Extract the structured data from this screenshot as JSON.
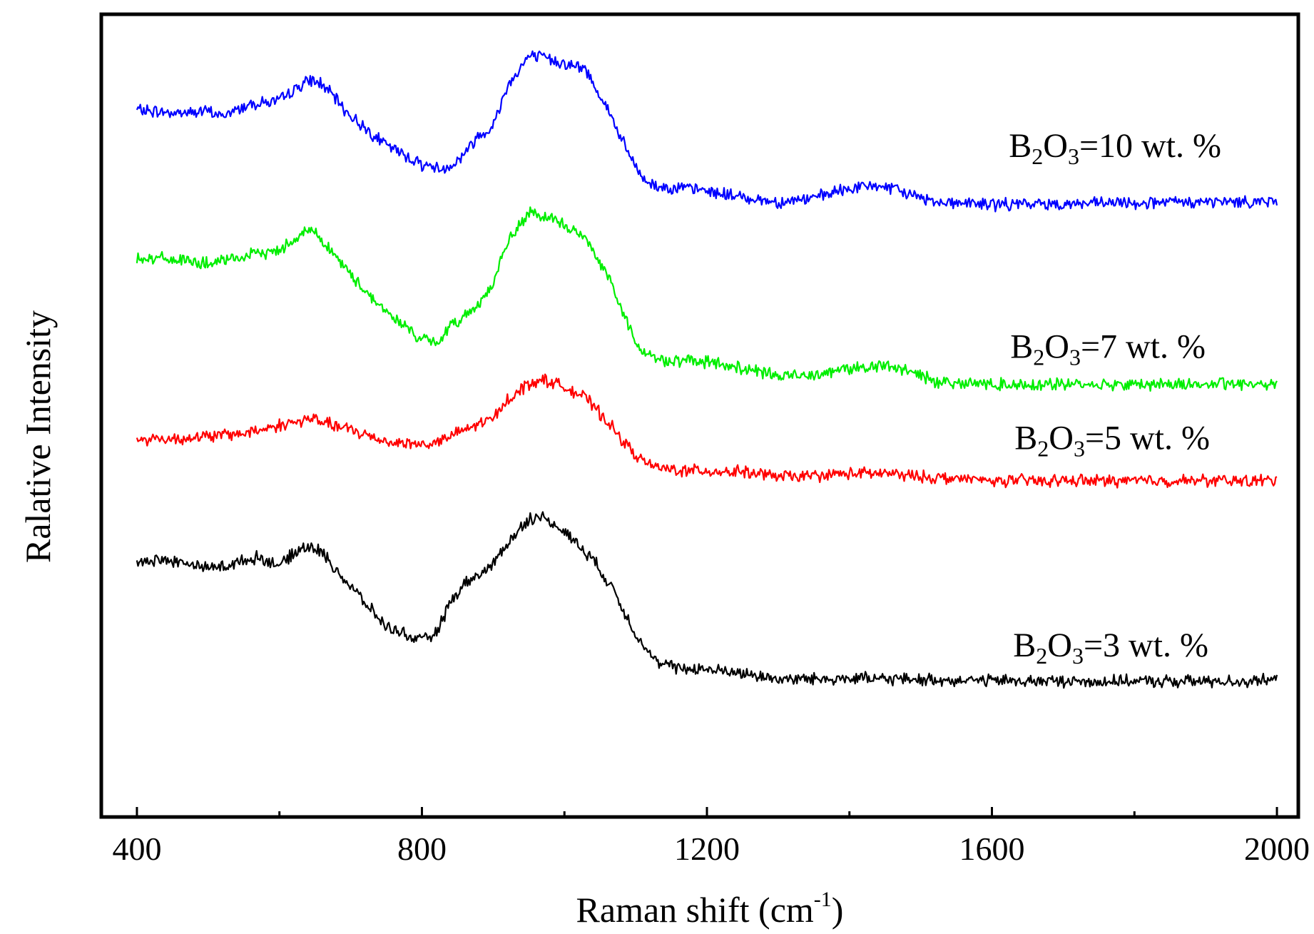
{
  "chart_data": {
    "type": "line",
    "title": "",
    "xlabel": "Raman shift (cm",
    "xlabel_sup": "-1",
    "xlabel_end": ")",
    "ylabel": "Ralative Intensity",
    "xlim": [
      350,
      2030
    ],
    "ylim": [
      0,
      1
    ],
    "xticks": [
      400,
      800,
      1200,
      1600,
      2000
    ],
    "xticks_minor": [
      600,
      1000,
      1400,
      1800
    ],
    "y_ticks_visible": false,
    "grid": false,
    "series": [
      {
        "name": "B2O3=10 wt. %",
        "label_prefix": "B",
        "label_sub1": "2",
        "label_mid": "O",
        "label_sub2": "3",
        "label_suffix": "=10 wt. %",
        "color": "#0000ff",
        "x": [
          400,
          450,
          500,
          520,
          560,
          600,
          630,
          645,
          660,
          700,
          750,
          800,
          830,
          850,
          880,
          900,
          920,
          950,
          970,
          1000,
          1030,
          1060,
          1090,
          1110,
          1130,
          1160,
          1200,
          1250,
          1300,
          1350,
          1400,
          1440,
          1480,
          1520,
          1600,
          1700,
          1800,
          1900,
          2000
        ],
        "y": [
          0.881,
          0.877,
          0.879,
          0.873,
          0.889,
          0.892,
          0.912,
          0.918,
          0.913,
          0.873,
          0.837,
          0.813,
          0.807,
          0.817,
          0.849,
          0.861,
          0.911,
          0.948,
          0.946,
          0.939,
          0.931,
          0.883,
          0.826,
          0.795,
          0.785,
          0.784,
          0.78,
          0.772,
          0.766,
          0.771,
          0.783,
          0.787,
          0.777,
          0.767,
          0.763,
          0.764,
          0.765,
          0.766,
          0.767
        ]
      },
      {
        "name": "B2O3=7 wt. %",
        "label_prefix": "B",
        "label_sub1": "2",
        "label_mid": "O",
        "label_sub2": "3",
        "label_suffix": "=7 wt. %",
        "color": "#00ee00",
        "x": [
          400,
          450,
          500,
          520,
          560,
          600,
          630,
          645,
          660,
          700,
          750,
          800,
          820,
          840,
          880,
          900,
          920,
          950,
          970,
          1000,
          1030,
          1060,
          1090,
          1110,
          1130,
          1160,
          1200,
          1250,
          1300,
          1350,
          1400,
          1440,
          1480,
          1520,
          1600,
          1700,
          1800,
          1900,
          2000
        ],
        "y": [
          0.697,
          0.695,
          0.689,
          0.692,
          0.7,
          0.706,
          0.727,
          0.732,
          0.719,
          0.675,
          0.629,
          0.595,
          0.59,
          0.61,
          0.64,
          0.664,
          0.716,
          0.752,
          0.748,
          0.738,
          0.72,
          0.677,
          0.611,
          0.58,
          0.57,
          0.568,
          0.567,
          0.559,
          0.549,
          0.552,
          0.559,
          0.562,
          0.557,
          0.543,
          0.539,
          0.539,
          0.539,
          0.539,
          0.54
        ]
      },
      {
        "name": "B2O3=5 wt. %",
        "label_prefix": "B",
        "label_sub1": "2",
        "label_mid": "O",
        "label_sub2": "3",
        "label_suffix": "=5 wt. %",
        "color": "#ff0000",
        "x": [
          400,
          450,
          500,
          550,
          600,
          645,
          700,
          750,
          800,
          820,
          850,
          880,
          900,
          920,
          950,
          970,
          1000,
          1030,
          1060,
          1090,
          1110,
          1130,
          1160,
          1200,
          1250,
          1300,
          1350,
          1400,
          1450,
          1500,
          1600,
          1700,
          1800,
          1900,
          2000
        ],
        "y": [
          0.471,
          0.471,
          0.474,
          0.478,
          0.488,
          0.496,
          0.482,
          0.468,
          0.464,
          0.466,
          0.478,
          0.49,
          0.496,
          0.52,
          0.54,
          0.545,
          0.536,
          0.522,
          0.493,
          0.46,
          0.443,
          0.435,
          0.432,
          0.431,
          0.43,
          0.424,
          0.425,
          0.428,
          0.428,
          0.424,
          0.419,
          0.419,
          0.419,
          0.419,
          0.419
        ]
      },
      {
        "name": "B2O3=3 wt. %",
        "label_prefix": "B",
        "label_sub1": "2",
        "label_mid": "O",
        "label_sub2": "3",
        "label_suffix": "=3 wt. %",
        "color": "#000000",
        "x": [
          400,
          450,
          500,
          530,
          570,
          600,
          620,
          640,
          660,
          700,
          750,
          800,
          820,
          840,
          860,
          880,
          900,
          920,
          950,
          970,
          1000,
          1040,
          1070,
          1100,
          1130,
          1160,
          1200,
          1250,
          1300,
          1350,
          1400,
          1450,
          1500,
          1600,
          1700,
          1800,
          1900,
          2000
        ],
        "y": [
          0.32,
          0.319,
          0.31,
          0.314,
          0.324,
          0.313,
          0.328,
          0.339,
          0.329,
          0.287,
          0.237,
          0.219,
          0.229,
          0.267,
          0.291,
          0.301,
          0.315,
          0.341,
          0.372,
          0.373,
          0.356,
          0.321,
          0.281,
          0.228,
          0.192,
          0.185,
          0.184,
          0.179,
          0.172,
          0.172,
          0.173,
          0.172,
          0.171,
          0.17,
          0.169,
          0.169,
          0.169,
          0.17
        ]
      }
    ]
  }
}
